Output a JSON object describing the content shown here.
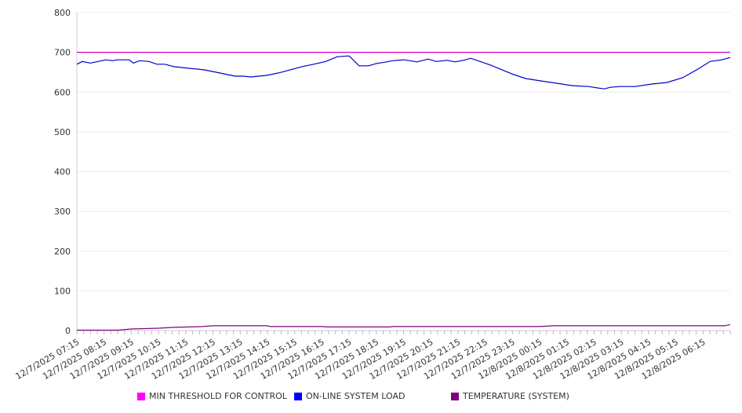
{
  "chart_data": {
    "type": "line",
    "title": "",
    "xlabel": "",
    "ylabel": "",
    "ylim": [
      0,
      800
    ],
    "yticks": [
      "0",
      "100",
      "200",
      "300",
      "400",
      "500",
      "600",
      "700",
      "800"
    ],
    "xlim_hours": [
      0,
      24
    ],
    "xtick_labels": [
      "12/7/2025 07:15",
      "12/7/2025 08:15",
      "12/7/2025 09:15",
      "12/7/2025 10:15",
      "12/7/2025 11:15",
      "12/7/2025 12:15",
      "12/7/2025 13:15",
      "12/7/2025 14:15",
      "12/7/2025 15:15",
      "12/7/2025 16:15",
      "12/7/2025 17:15",
      "12/7/2025 18:15",
      "12/7/2025 19:15",
      "12/7/2025 20:15",
      "12/7/2025 21:15",
      "12/7/2025 22:15",
      "12/7/2025 23:15",
      "12/8/2025 00:15",
      "12/8/2025 01:15",
      "12/8/2025 02:15",
      "12/8/2025 03:15",
      "12/8/2025 04:15",
      "12/8/2025 05:15",
      "12/8/2025 06:15"
    ],
    "grid": true,
    "legend_position": "bottom",
    "series": [
      {
        "name": "MIN THRESHOLD FOR CONTROL",
        "color": "#ff00ff",
        "line_color": "#cc00cc",
        "points": [
          [
            0,
            700
          ],
          [
            24,
            700
          ]
        ]
      },
      {
        "name": "ON-LINE SYSTEM LOAD",
        "color": "#0000ff",
        "line_color": "#0000cc",
        "points": [
          [
            0,
            670
          ],
          [
            0.2,
            677
          ],
          [
            0.49,
            673
          ],
          [
            0.78,
            677
          ],
          [
            1.07,
            681
          ],
          [
            1.3,
            679
          ],
          [
            1.5,
            681
          ],
          [
            1.93,
            681
          ],
          [
            2.07,
            673
          ],
          [
            2.31,
            679
          ],
          [
            2.65,
            677
          ],
          [
            2.94,
            670
          ],
          [
            3.23,
            670
          ],
          [
            3.57,
            664
          ],
          [
            4.09,
            660
          ],
          [
            4.67,
            656
          ],
          [
            5.24,
            648
          ],
          [
            5.53,
            644
          ],
          [
            5.82,
            640
          ],
          [
            6.11,
            640
          ],
          [
            6.4,
            638
          ],
          [
            6.97,
            642
          ],
          [
            7.41,
            648
          ],
          [
            7.84,
            656
          ],
          [
            8.27,
            664
          ],
          [
            8.7,
            670
          ],
          [
            9.14,
            677
          ],
          [
            9.57,
            689
          ],
          [
            10,
            691
          ],
          [
            10.37,
            666
          ],
          [
            10.72,
            666
          ],
          [
            11.01,
            672
          ],
          [
            11.3,
            675
          ],
          [
            11.59,
            679
          ],
          [
            12.02,
            681
          ],
          [
            12.5,
            676
          ],
          [
            12.9,
            683
          ],
          [
            13.2,
            677
          ],
          [
            13.6,
            680
          ],
          [
            13.89,
            676
          ],
          [
            14.2,
            680
          ],
          [
            14.47,
            685
          ],
          [
            14.81,
            677
          ],
          [
            15.19,
            668
          ],
          [
            15.62,
            656
          ],
          [
            16.05,
            644
          ],
          [
            16.48,
            634
          ],
          [
            17.06,
            628
          ],
          [
            17.64,
            622
          ],
          [
            18.21,
            616
          ],
          [
            18.79,
            614
          ],
          [
            19.37,
            608
          ],
          [
            19.6,
            612
          ],
          [
            19.94,
            614
          ],
          [
            20.52,
            614
          ],
          [
            21.1,
            620
          ],
          [
            21.67,
            624
          ],
          [
            22.25,
            636
          ],
          [
            22.82,
            658
          ],
          [
            23.26,
            677
          ],
          [
            23.69,
            681
          ],
          [
            24,
            687
          ]
        ]
      },
      {
        "name": "TEMPERATURE (SYSTEM)",
        "color": "#800080",
        "line_color": "#800080",
        "points": [
          [
            0,
            1
          ],
          [
            1.5,
            1
          ],
          [
            2,
            4
          ],
          [
            3,
            6
          ],
          [
            3.6,
            8
          ],
          [
            4.6,
            10
          ],
          [
            5,
            12
          ],
          [
            7,
            12
          ],
          [
            7.1,
            10
          ],
          [
            9,
            10
          ],
          [
            9.2,
            9
          ],
          [
            11.5,
            9
          ],
          [
            11.6,
            10
          ],
          [
            17,
            10
          ],
          [
            17.5,
            12
          ],
          [
            23.8,
            12
          ],
          [
            24,
            15
          ]
        ]
      }
    ]
  }
}
